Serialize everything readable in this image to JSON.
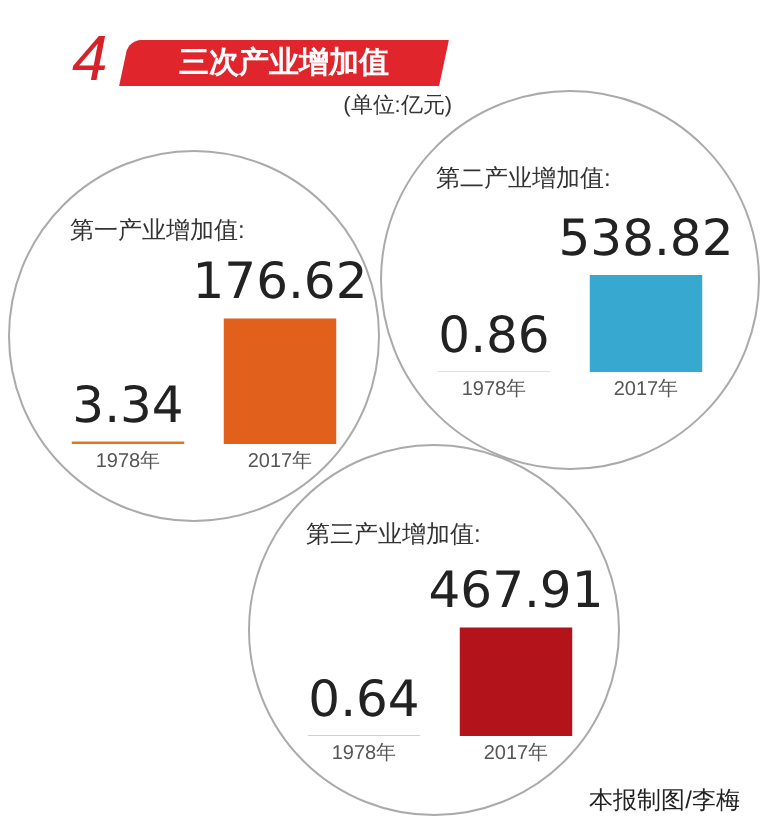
{
  "chart_data": [
    {
      "type": "other",
      "title": "三次产业增加值",
      "subtitle": "(单位:亿元)",
      "annotations": [
        "4",
        "本报制图/李梅"
      ]
    },
    {
      "type": "bar",
      "title": "第一产业增加值:",
      "categories": [
        "1978年",
        "2017年"
      ],
      "values": [
        3.34,
        176.62
      ],
      "colors": [
        "#e8731e",
        "#e0601c"
      ],
      "data_labels": true
    },
    {
      "type": "bar",
      "title": "第二产业增加值:",
      "categories": [
        "1978年",
        "2017年"
      ],
      "values": [
        0.86,
        538.82
      ],
      "colors": [
        "#3a9fb5",
        "#37a9d1"
      ],
      "data_labels": true
    },
    {
      "type": "bar",
      "title": "第三产业增加值:",
      "categories": [
        "1978年",
        "2017年"
      ],
      "values": [
        0.64,
        467.91
      ],
      "colors": [
        "#8a2030",
        "#b3141c"
      ],
      "data_labels": true
    }
  ]
}
